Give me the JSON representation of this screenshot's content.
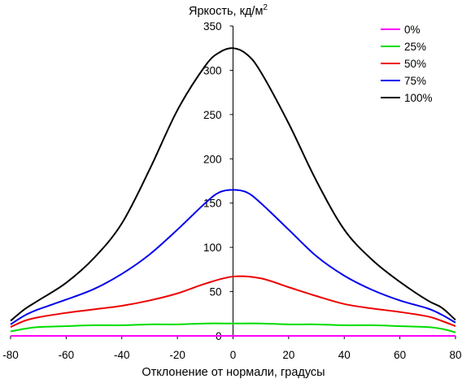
{
  "chart_data": {
    "type": "line",
    "title": "",
    "ylabel": "Яркость, кд/м",
    "ylabel_superscript": "2",
    "xlabel": "Отклонение от нормали, градусы",
    "xlim": [
      -80,
      80
    ],
    "ylim": [
      0,
      350
    ],
    "xticks": [
      -80,
      -60,
      -40,
      -20,
      0,
      20,
      40,
      60,
      80
    ],
    "yticks": [
      0,
      50,
      100,
      150,
      200,
      250,
      300,
      350
    ],
    "grid": false,
    "legend_position": "top-right",
    "series": [
      {
        "name": "0%",
        "color": "#ff00ff",
        "x": [
          -80,
          80
        ],
        "y": [
          0,
          0
        ]
      },
      {
        "name": "25%",
        "color": "#00dd00",
        "x": [
          -80,
          -75,
          -70,
          -60,
          -50,
          -40,
          -30,
          -20,
          -10,
          0,
          10,
          20,
          30,
          40,
          50,
          60,
          70,
          75,
          80
        ],
        "y": [
          5,
          8,
          10,
          11,
          12,
          12,
          13,
          13,
          14,
          14,
          14,
          13,
          13,
          12,
          12,
          11,
          10,
          8,
          4
        ]
      },
      {
        "name": "50%",
        "color": "#ee0000",
        "x": [
          -80,
          -75,
          -70,
          -60,
          -50,
          -40,
          -30,
          -20,
          -10,
          0,
          10,
          20,
          30,
          40,
          50,
          60,
          70,
          75,
          80
        ],
        "y": [
          10,
          17,
          21,
          26,
          30,
          34,
          40,
          48,
          59,
          67,
          65,
          55,
          45,
          36,
          31,
          27,
          22,
          17,
          11
        ]
      },
      {
        "name": "75%",
        "color": "#0000ee",
        "x": [
          -80,
          -75,
          -70,
          -60,
          -50,
          -40,
          -30,
          -20,
          -10,
          -5,
          0,
          5,
          10,
          20,
          30,
          40,
          50,
          60,
          70,
          75,
          80
        ],
        "y": [
          13,
          23,
          30,
          41,
          53,
          70,
          92,
          120,
          150,
          162,
          165,
          162,
          150,
          120,
          90,
          68,
          52,
          40,
          31,
          24,
          15
        ]
      },
      {
        "name": "100%",
        "color": "#000000",
        "x": [
          -80,
          -75,
          -70,
          -60,
          -50,
          -40,
          -30,
          -20,
          -10,
          -5,
          0,
          5,
          10,
          20,
          30,
          40,
          50,
          60,
          70,
          75,
          80
        ],
        "y": [
          17,
          30,
          40,
          60,
          88,
          127,
          188,
          255,
          305,
          320,
          325,
          318,
          298,
          240,
          175,
          120,
          86,
          61,
          40,
          32,
          18
        ]
      }
    ]
  }
}
